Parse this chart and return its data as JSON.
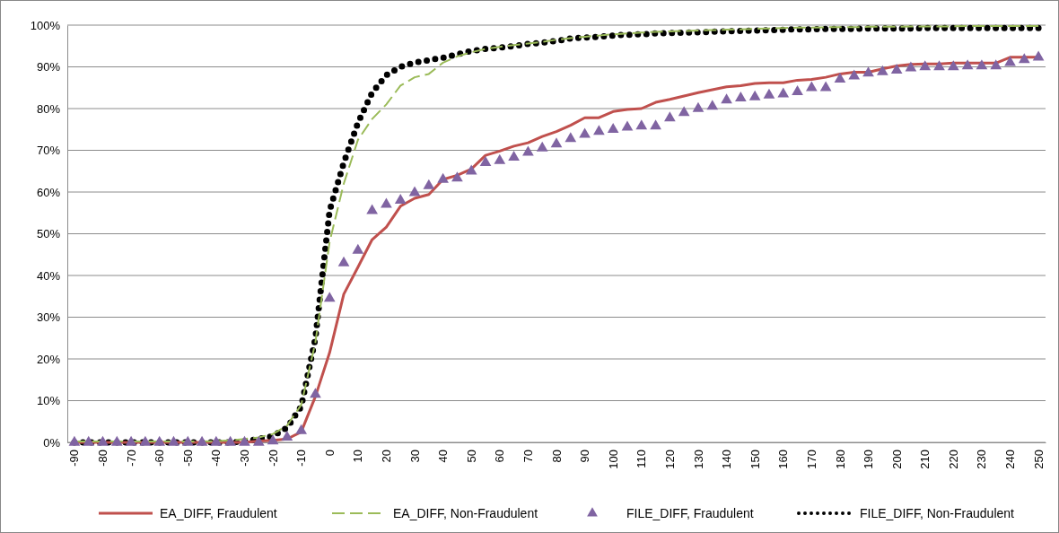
{
  "chart_data": {
    "type": "line",
    "categories": [
      "-90",
      null,
      "-80",
      null,
      "-70",
      null,
      "-60",
      null,
      "-50",
      null,
      "-40",
      null,
      "-30",
      null,
      "-20",
      null,
      "-10",
      null,
      "0",
      null,
      "10",
      null,
      "20",
      null,
      "30",
      null,
      "40",
      null,
      "50",
      null,
      "60",
      null,
      "70",
      null,
      "80",
      null,
      "90",
      null,
      "100",
      null,
      "110",
      null,
      "120",
      null,
      "130",
      null,
      "140",
      null,
      "150",
      null,
      "160",
      null,
      "170",
      null,
      "180",
      null,
      "190",
      null,
      "200",
      null,
      "210",
      null,
      "220",
      null,
      "230",
      null,
      "240",
      null,
      "250"
    ],
    "series": [
      {
        "name": "EA_DIFF, Fraudulent",
        "color": "#c0504d",
        "line_style": "solid",
        "values": [
          0,
          0,
          0,
          0,
          0,
          0,
          0,
          0,
          0,
          0,
          0,
          0,
          0,
          0.3,
          0.5,
          0.8,
          2.5,
          11,
          21.5,
          35.5,
          42,
          48.6,
          51.6,
          56.6,
          58.5,
          59.4,
          63,
          64,
          65.5,
          68.8,
          69.8,
          71,
          71.8,
          73.3,
          74.5,
          76,
          77.8,
          77.8,
          79.3,
          79.8,
          80,
          81.5,
          82.2,
          83,
          83.8,
          84.5,
          85.2,
          85.5,
          86,
          86.2,
          86.2,
          86.8,
          87,
          87.5,
          88.3,
          88.7,
          88.7,
          89.5,
          90.2,
          90.6,
          90.7,
          90.7,
          90.9,
          90.9,
          90.9,
          90.9,
          92.3,
          92.3,
          92.3
        ]
      },
      {
        "name": "EA_DIFF, Non-Fraudulent",
        "color": "#9bbb59",
        "line_style": "dashed",
        "values": [
          0.2,
          0.2,
          0.2,
          0.2,
          0.2,
          0.2,
          0.2,
          0.2,
          0.2,
          0.2,
          0.3,
          0.5,
          0.8,
          1.2,
          2,
          4,
          9,
          24,
          48,
          62,
          72.5,
          77.5,
          81,
          85.5,
          87.5,
          88.3,
          91,
          92.5,
          93.5,
          94.3,
          94.8,
          95.2,
          95.6,
          96,
          96.5,
          96.9,
          97.2,
          97.5,
          97.8,
          98,
          98.2,
          98.4,
          98.5,
          98.6,
          98.7,
          98.8,
          98.9,
          99,
          99.1,
          99.2,
          99.3,
          99.4,
          99.4,
          99.5,
          99.5,
          99.5,
          99.6,
          99.6,
          99.6,
          99.7,
          99.7,
          99.7,
          99.7,
          99.8,
          99.8,
          99.8,
          99.8,
          99.8,
          99.8
        ]
      },
      {
        "name": "FILE_DIFF, Fraudulent",
        "type": "scatter",
        "marker": "triangle",
        "color": "#8064a2",
        "values": [
          0,
          0,
          0,
          0,
          0,
          0,
          0,
          0,
          0,
          0,
          0,
          0,
          0,
          0,
          0.3,
          1.2,
          2.8,
          11.5,
          34.5,
          43,
          46,
          55.5,
          57,
          58,
          59.8,
          61.5,
          63,
          63.3,
          65,
          67,
          67.5,
          68.3,
          69.5,
          70.5,
          71.5,
          72.8,
          73.8,
          74.5,
          75,
          75.5,
          75.8,
          75.8,
          77.7,
          79,
          80,
          80.5,
          82,
          82.5,
          82.8,
          83.2,
          83.5,
          84,
          85,
          85,
          87,
          87.8,
          88.5,
          88.8,
          89.2,
          89.7,
          90,
          90,
          90,
          90.2,
          90.2,
          90.2,
          91,
          91.7,
          92.3
        ]
      },
      {
        "name": "FILE_DIFF, Non-Fraudulent",
        "color": "#000000",
        "line_style": "dotted",
        "values": [
          0,
          0,
          0,
          0,
          0,
          0,
          0,
          0,
          0,
          0,
          0,
          0,
          0.3,
          0.8,
          1.5,
          3.5,
          8.6,
          25,
          55.5,
          67,
          76.6,
          83.8,
          88,
          90,
          91,
          91.6,
          92.2,
          93,
          93.8,
          94.3,
          94.6,
          95,
          95.5,
          95.8,
          96.2,
          96.8,
          97,
          97.2,
          97.5,
          97.7,
          97.8,
          98,
          98.1,
          98.2,
          98.3,
          98.4,
          98.5,
          98.6,
          98.7,
          98.8,
          98.9,
          99,
          99,
          99.1,
          99.1,
          99.1,
          99.2,
          99.2,
          99.2,
          99.2,
          99.3,
          99.3,
          99.3,
          99.3,
          99.3,
          99.3,
          99.3,
          99.3,
          99.3
        ]
      }
    ],
    "ylim": [
      0,
      100
    ],
    "yticks": [
      {
        "value": 0,
        "label": "0%"
      },
      {
        "value": 10,
        "label": "10%"
      },
      {
        "value": 20,
        "label": "20%"
      },
      {
        "value": 30,
        "label": "30%"
      },
      {
        "value": 40,
        "label": "40%"
      },
      {
        "value": 50,
        "label": "50%"
      },
      {
        "value": 60,
        "label": "60%"
      },
      {
        "value": 70,
        "label": "70%"
      },
      {
        "value": 80,
        "label": "80%"
      },
      {
        "value": 90,
        "label": "90%"
      },
      {
        "value": 100,
        "label": "100%"
      }
    ],
    "grid": "y",
    "legend": "bottom"
  }
}
